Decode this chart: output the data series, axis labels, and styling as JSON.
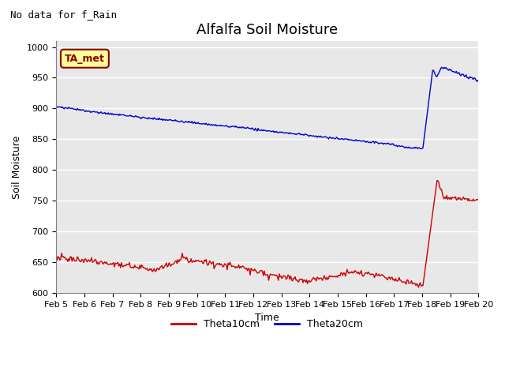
{
  "title": "Alfalfa Soil Moisture",
  "subtitle": "No data for f_Rain",
  "ylabel": "Soil Moisture",
  "xlabel": "Time",
  "ylim": [
    600,
    1010
  ],
  "yticks": [
    600,
    650,
    700,
    750,
    800,
    850,
    900,
    950,
    1000
  ],
  "xtick_labels": [
    "Feb 5",
    "Feb 6",
    "Feb 7",
    "Feb 8",
    "Feb 9",
    "Feb 10",
    "Feb 11",
    "Feb 12",
    "Feb 13",
    "Feb 14",
    "Feb 15",
    "Feb 16",
    "Feb 17",
    "Feb 18",
    "Feb 19",
    "Feb 20"
  ],
  "legend_label_red": "Theta10cm",
  "legend_label_blue": "Theta20cm",
  "color_red": "#cc0000",
  "color_blue": "#0000cc",
  "annotation_text": "TA_met",
  "annotation_bg": "#ffff99",
  "annotation_border": "#cc0000",
  "background_color": "#e8e8e8",
  "title_fontsize": 13,
  "label_fontsize": 9,
  "tick_fontsize": 8,
  "subtitle_fontsize": 9,
  "legend_fontsize": 9
}
